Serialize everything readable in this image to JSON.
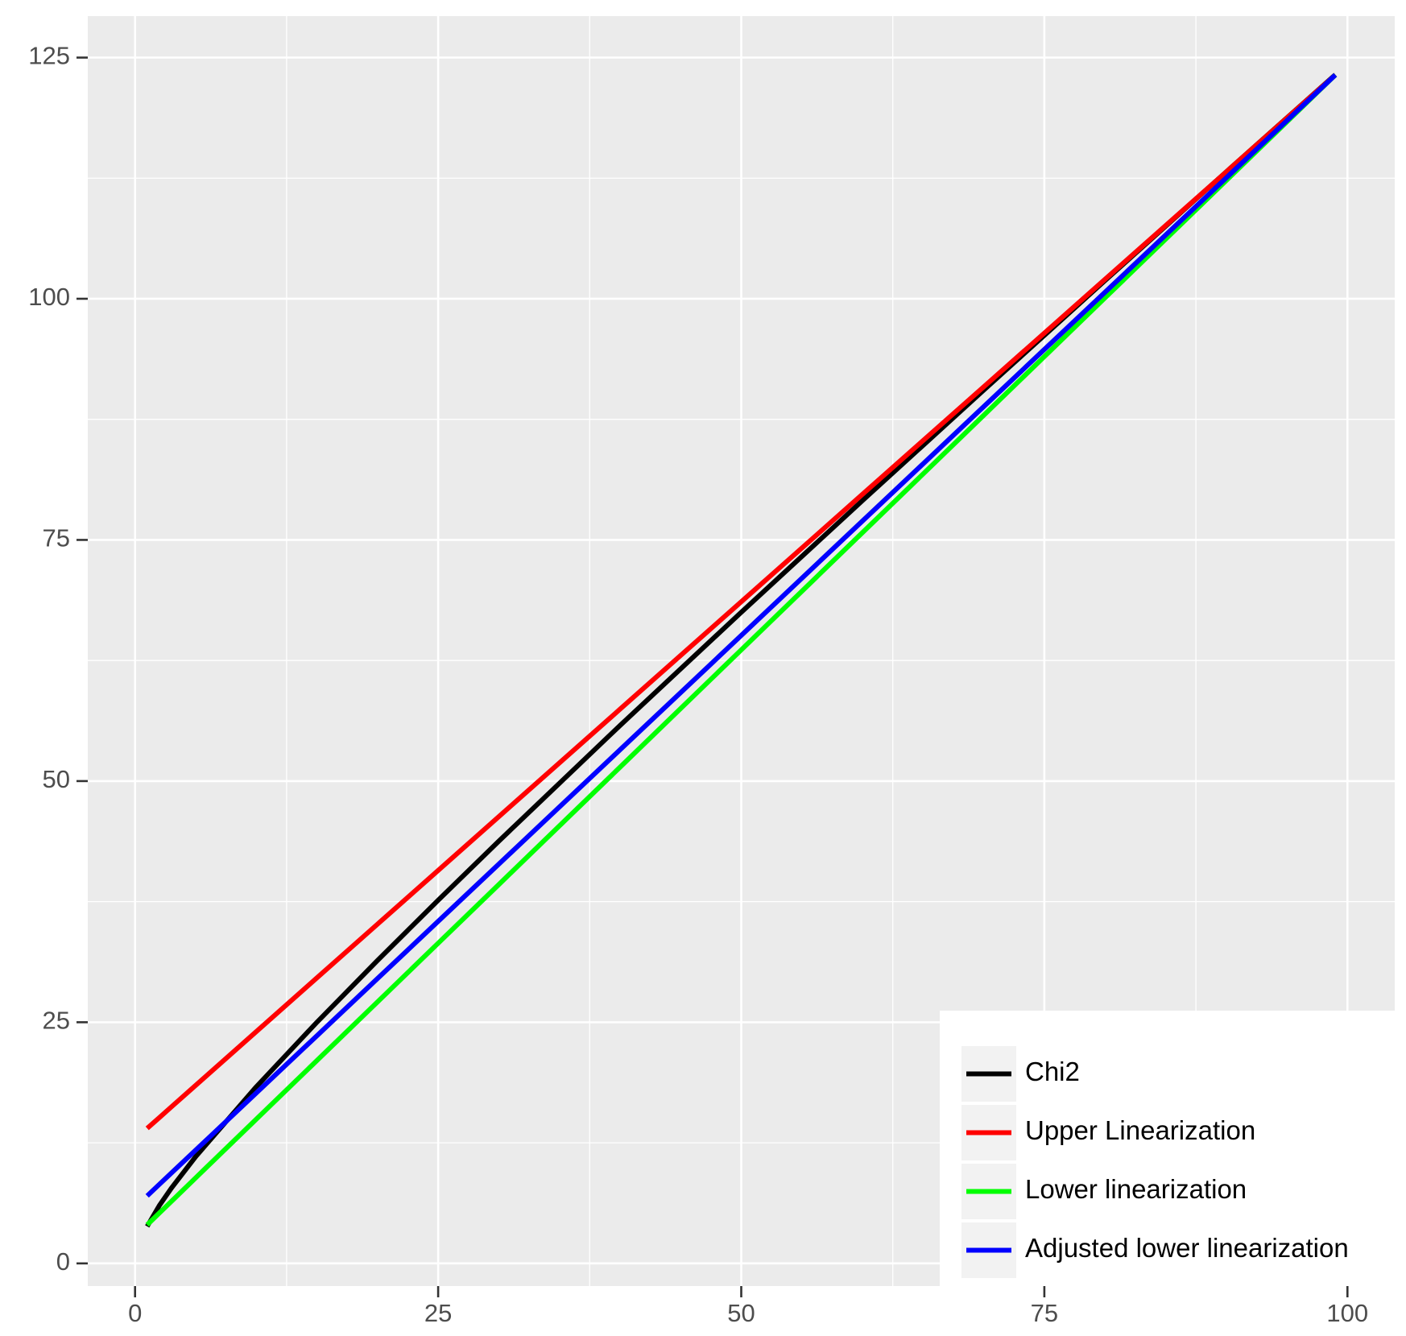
{
  "chart_data": {
    "type": "line",
    "x": [
      1,
      2,
      3,
      5,
      10,
      15,
      20,
      25,
      30,
      40,
      50,
      60,
      70,
      80,
      90,
      99
    ],
    "series": [
      {
        "name": "Chi2",
        "color": "#000000",
        "values": [
          3.84,
          5.99,
          7.81,
          11.07,
          18.31,
          25.0,
          31.41,
          37.65,
          43.77,
          55.76,
          67.5,
          79.08,
          90.53,
          101.88,
          113.15,
          123.23
        ]
      },
      {
        "name": "Upper Linearization",
        "color": "#ff0000",
        "values": [
          14,
          15.11,
          16.23,
          18.46,
          24.03,
          29.6,
          35.17,
          40.74,
          46.31,
          57.45,
          68.59,
          79.73,
          90.87,
          102.01,
          113.15,
          123.2
        ]
      },
      {
        "name": "Lower linearization",
        "color": "#00ff00",
        "values": [
          4,
          5.22,
          6.43,
          8.87,
          14.95,
          21.03,
          27.11,
          33.19,
          39.27,
          51.44,
          63.6,
          75.76,
          87.92,
          100.09,
          112.25,
          123.2
        ]
      },
      {
        "name": "Adjusted lower linearization",
        "color": "#0000ff",
        "values": [
          7,
          8.19,
          9.37,
          11.74,
          17.67,
          23.6,
          29.53,
          35.46,
          41.39,
          53.24,
          65.1,
          76.96,
          88.82,
          100.67,
          112.53,
          123.2
        ]
      }
    ],
    "xlim": [
      -3.9,
      103.9
    ],
    "ylim": [
      -2.35,
      129.3
    ],
    "xticks": [
      0,
      25,
      50,
      75,
      100
    ],
    "yticks": [
      0,
      25,
      50,
      75,
      100,
      125
    ],
    "xminor_ticks": [
      12.5,
      37.5,
      62.5,
      87.5
    ],
    "yminor_ticks": [
      12.5,
      37.5,
      62.5,
      87.5,
      112.5
    ],
    "grid": true,
    "legend_position": "bottom-right"
  }
}
